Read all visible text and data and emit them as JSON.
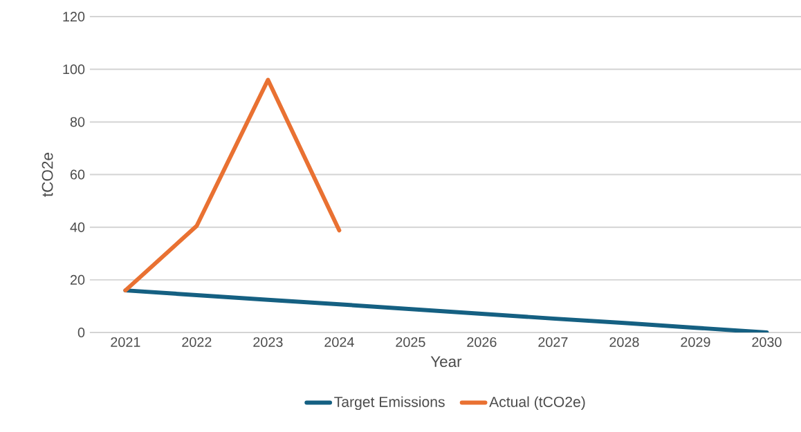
{
  "chart_data": {
    "type": "line",
    "xlabel": "Year",
    "ylabel": "tCO2e",
    "categories": [
      "2021",
      "2022",
      "2023",
      "2024",
      "2025",
      "2026",
      "2027",
      "2028",
      "2029",
      "2030"
    ],
    "series": [
      {
        "name": "Target Emissions",
        "color": "#156082",
        "values": [
          16,
          14.2,
          12.4,
          10.7,
          8.9,
          7.1,
          5.3,
          3.6,
          1.8,
          0
        ]
      },
      {
        "name": "Actual (tCO2e)",
        "color": "#e97132",
        "values": [
          16,
          40.5,
          96,
          38.8,
          null,
          null,
          null,
          null,
          null,
          null
        ]
      }
    ],
    "ylim": [
      0,
      120
    ],
    "yticks": [
      0,
      20,
      40,
      60,
      80,
      100,
      120
    ],
    "grid": "y",
    "legend": "bottom"
  }
}
